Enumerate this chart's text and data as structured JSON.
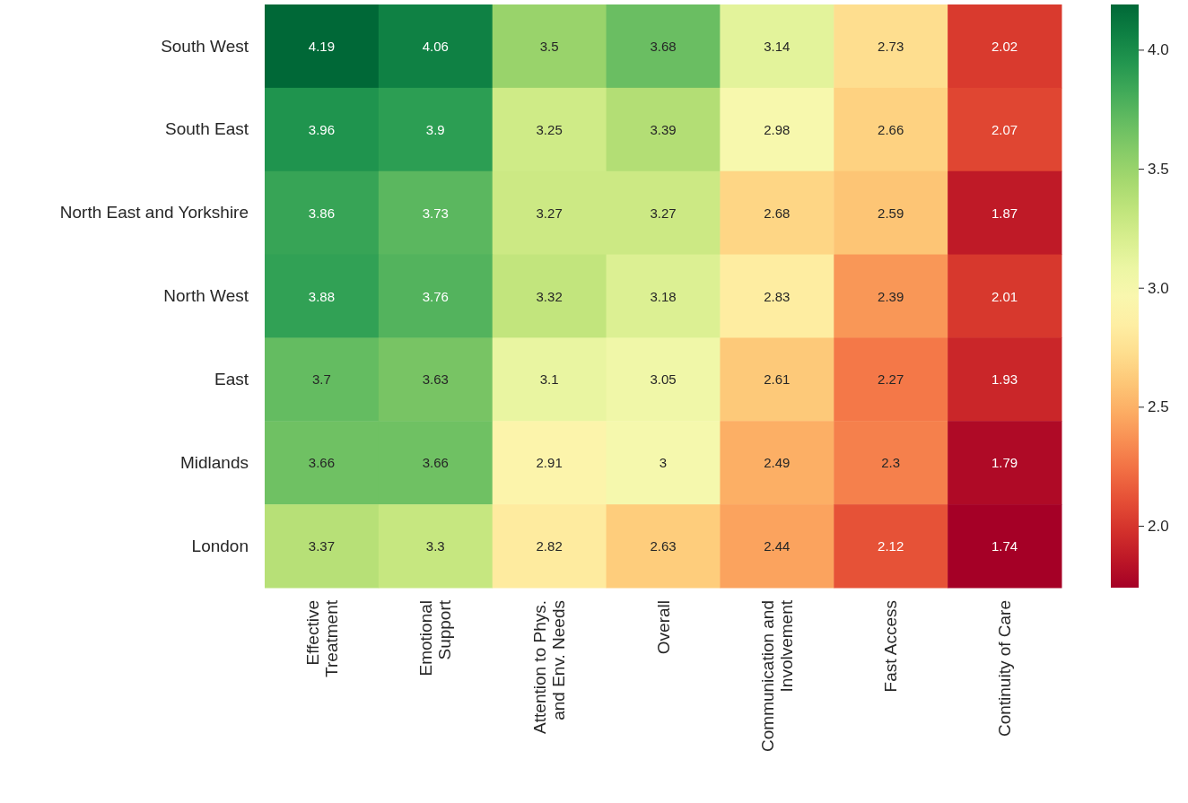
{
  "chart_data": {
    "type": "heatmap",
    "categories": [
      "Effective\nTreatment",
      "Emotional\nSupport",
      "Attention to Phys.\nand Env. Needs",
      "Overall",
      "Communication and\nInvolvement",
      "Fast Access",
      "Continuity of Care"
    ],
    "y_categories": [
      "South West",
      "South East",
      "North East and Yorkshire",
      "North West",
      "East",
      "Midlands",
      "London"
    ],
    "cells": [
      [
        4.19,
        4.06,
        3.5,
        3.68,
        3.14,
        2.73,
        2.02
      ],
      [
        3.96,
        3.9,
        3.25,
        3.39,
        2.98,
        2.66,
        2.07
      ],
      [
        3.86,
        3.73,
        3.27,
        3.27,
        2.68,
        2.59,
        1.87
      ],
      [
        3.88,
        3.76,
        3.32,
        3.18,
        2.83,
        2.39,
        2.01
      ],
      [
        3.7,
        3.63,
        3.1,
        3.05,
        2.61,
        2.27,
        1.93
      ],
      [
        3.66,
        3.66,
        2.91,
        3,
        2.49,
        2.3,
        1.79
      ],
      [
        3.37,
        3.3,
        2.82,
        2.63,
        2.44,
        2.12,
        1.74
      ]
    ],
    "clim": [
      1.74,
      4.19
    ],
    "cticks": [
      {
        "value": 2.0,
        "label": "2.0"
      },
      {
        "value": 2.5,
        "label": "2.5"
      },
      {
        "value": 3.0,
        "label": "3.0"
      },
      {
        "value": 3.5,
        "label": "3.5"
      },
      {
        "value": 4.0,
        "label": "4.0"
      }
    ],
    "data_labels": true
  }
}
